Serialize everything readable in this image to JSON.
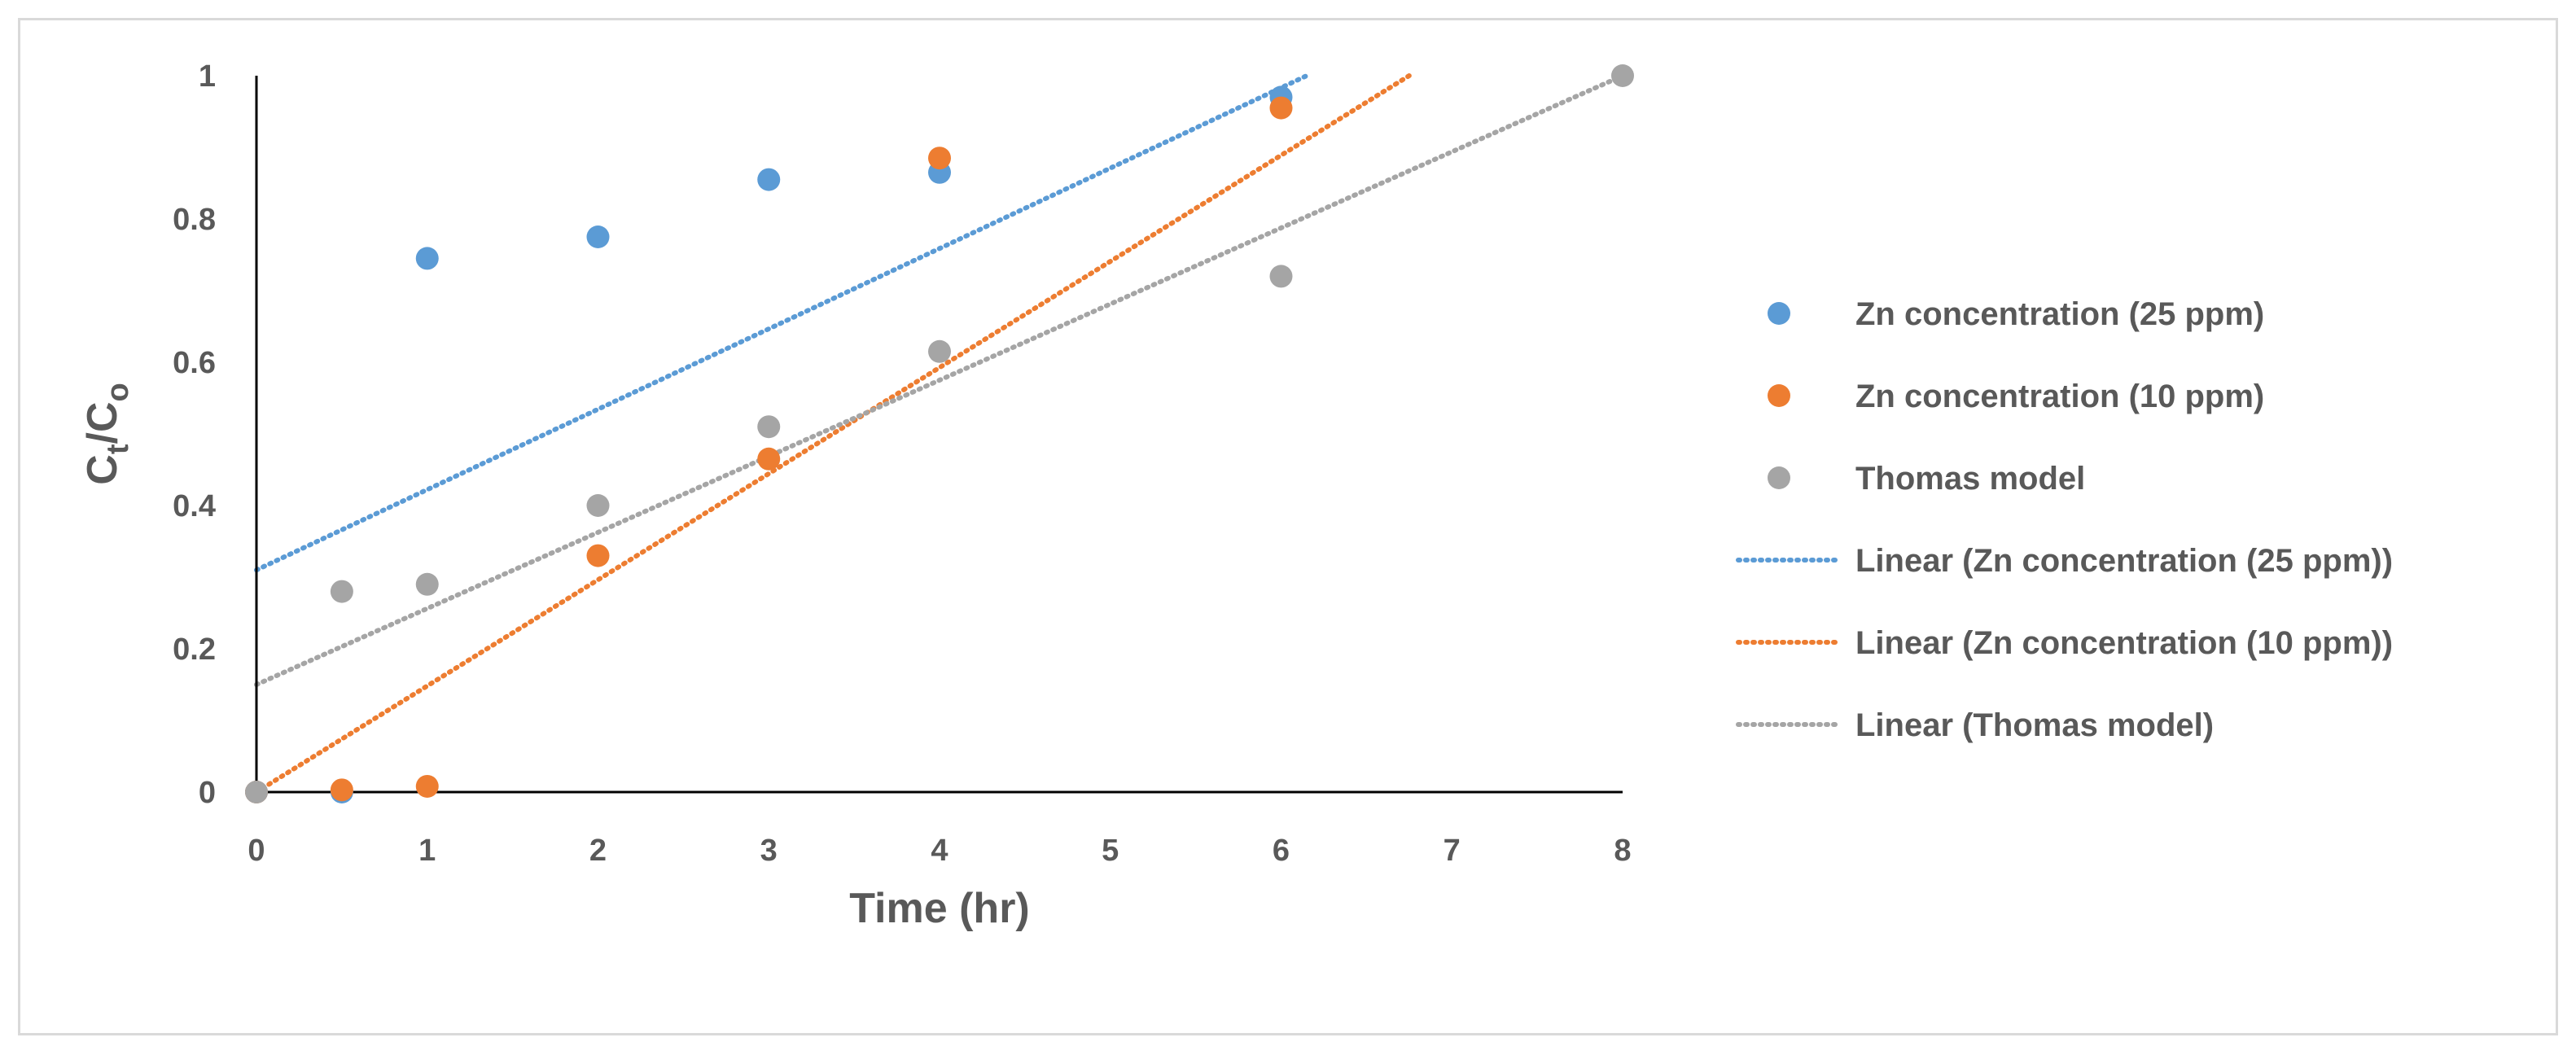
{
  "chart_data": {
    "type": "scatter",
    "title": "",
    "xlabel": "Time (hr)",
    "ylabel": {
      "main": "C",
      "sub1": "t",
      "sep": "/C",
      "sub2": "o"
    },
    "xlim": [
      0,
      8
    ],
    "ylim": [
      0,
      1
    ],
    "xticks": [
      "0",
      "1",
      "2",
      "3",
      "4",
      "5",
      "6",
      "7",
      "8"
    ],
    "yticks": [
      "0",
      "0.2",
      "0.4",
      "0.6",
      "0.8",
      "1"
    ],
    "legend_position": "right",
    "series": [
      {
        "name": "Zn concentration (25 ppm)",
        "color": "#5b9bd5",
        "points": [
          [
            0,
            0
          ],
          [
            0.5,
            0
          ],
          [
            1,
            0.745
          ],
          [
            2,
            0.775
          ],
          [
            3,
            0.855
          ],
          [
            4,
            0.865
          ],
          [
            6,
            0.97
          ]
        ]
      },
      {
        "name": "Zn concentration (10 ppm)",
        "color": "#ed7d31",
        "points": [
          [
            0,
            0
          ],
          [
            0.5,
            0.003
          ],
          [
            1,
            0.008
          ],
          [
            2,
            0.33
          ],
          [
            3,
            0.465
          ],
          [
            4,
            0.885
          ],
          [
            6,
            0.955
          ]
        ]
      },
      {
        "name": "Thomas model",
        "color": "#a5a5a5",
        "points": [
          [
            0,
            0
          ],
          [
            0.5,
            0.28
          ],
          [
            1,
            0.29
          ],
          [
            2,
            0.4
          ],
          [
            3,
            0.51
          ],
          [
            4,
            0.615
          ],
          [
            6,
            0.72
          ],
          [
            8,
            1.0
          ]
        ]
      }
    ],
    "trendlines": [
      {
        "name": "Linear (Zn concentration (25 ppm))",
        "color": "#5b9bd5",
        "x0": 0,
        "y0": 0.31,
        "x1": 6.15,
        "y1": 1.0
      },
      {
        "name": "Linear (Zn concentration (10 ppm))",
        "color": "#ed7d31",
        "x0": 0,
        "y0": 0.0,
        "x1": 6.75,
        "y1": 1.0
      },
      {
        "name": "Linear (Thomas model)",
        "color": "#a5a5a5",
        "x0": 0,
        "y0": 0.15,
        "x1": 8,
        "y1": 1.0
      }
    ]
  }
}
